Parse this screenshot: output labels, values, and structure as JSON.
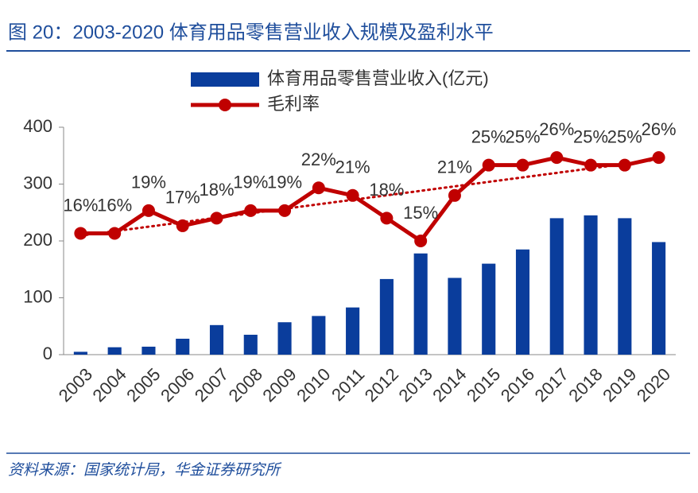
{
  "chart_data": {
    "type": "bar-line",
    "title": "图 20：2003-2020 体育用品零售营业收入规模及盈利水平",
    "source": "资料来源：国家统计局，华金证券研究所",
    "categories": [
      "2003",
      "2004",
      "2005",
      "2006",
      "2007",
      "2008",
      "2009",
      "2010",
      "2011",
      "2012",
      "2013",
      "2014",
      "2015",
      "2016",
      "2017",
      "2018",
      "2019",
      "2020"
    ],
    "series": [
      {
        "name": "体育用品零售营业收入(亿元)",
        "type": "bar",
        "color": "#0a3d9c",
        "values": [
          5,
          13,
          14,
          28,
          52,
          35,
          57,
          68,
          83,
          133,
          178,
          135,
          160,
          185,
          240,
          245,
          240,
          198
        ]
      },
      {
        "name": "毛利率",
        "type": "line",
        "axis": "y2",
        "color": "#c00000",
        "trendline": true,
        "values": [
          16,
          16,
          19,
          17,
          18,
          19,
          19,
          22,
          21,
          18,
          15,
          21,
          25,
          25,
          26,
          25,
          25,
          26
        ],
        "value_labels": [
          "16%",
          "16%",
          "19%",
          "17%",
          "18%",
          "19%",
          "19%",
          "22%",
          "21%",
          "18%",
          "15%",
          "21%",
          "25%",
          "25%",
          "26%",
          "25%",
          "25%",
          "26%"
        ]
      }
    ],
    "ylim": [
      0,
      400
    ],
    "yticks": [
      0,
      100,
      200,
      300,
      400
    ],
    "y2lim": [
      0,
      30
    ],
    "grid": false
  }
}
